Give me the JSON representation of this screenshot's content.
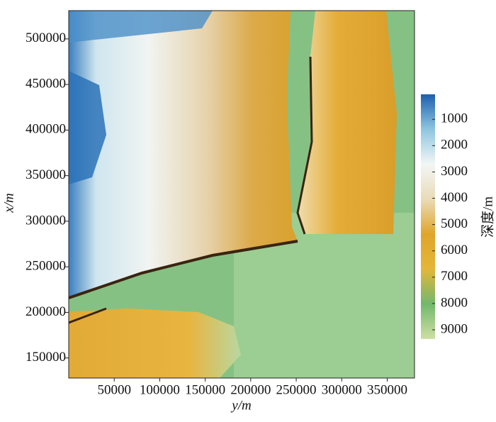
{
  "chart_data": {
    "type": "heatmap",
    "x_label": "y/m",
    "y_label": "x/m",
    "colorbar_label": "深度/m",
    "xlim": [
      0,
      380000
    ],
    "xticks": [
      50000,
      100000,
      150000,
      200000,
      250000,
      300000,
      350000
    ],
    "ylim": [
      128000,
      531000
    ],
    "yticks": [
      150000,
      200000,
      250000,
      300000,
      350000,
      400000,
      450000,
      500000
    ],
    "clim": [
      50,
      9350
    ],
    "cticks": [
      1000,
      2000,
      3000,
      4000,
      5000,
      6000,
      7000,
      8000,
      9000
    ],
    "colormap": [
      "#1d5fae",
      "#8ec6e0",
      "#f2f6f5",
      "#eadbb8",
      "#dfa52a",
      "#e3b63a",
      "#72b86c",
      "#cfdfa6"
    ]
  }
}
